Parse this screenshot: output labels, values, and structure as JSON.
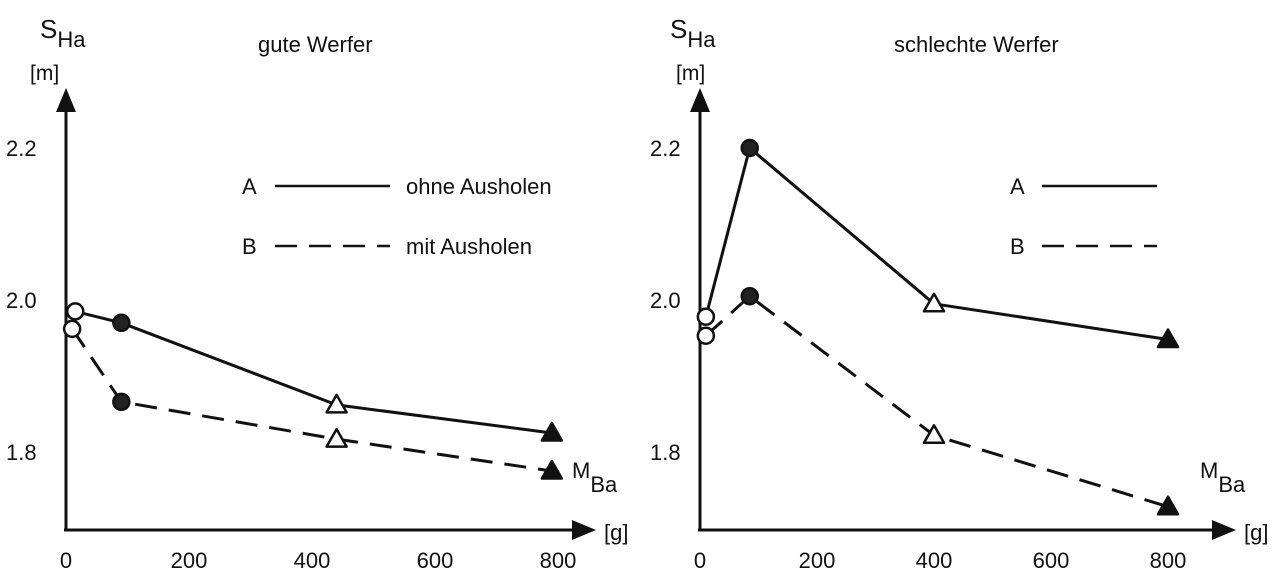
{
  "chart_data": [
    {
      "type": "line",
      "title": "gute Werfer",
      "ylabel": {
        "main": "S",
        "sub": "Ha",
        "unit": "[m]"
      },
      "xlabel": {
        "main": "M",
        "sub": "Ba",
        "unit": "[g]"
      },
      "xlim": [
        0,
        800
      ],
      "ylim": [
        1.7,
        2.25
      ],
      "xticks": [
        "0",
        "200",
        "400",
        "600",
        "800"
      ],
      "yticks": [
        "1.8",
        "2.0",
        "2.2"
      ],
      "legend": [
        {
          "key": "A",
          "label": "ohne Ausholen",
          "style": "solid"
        },
        {
          "key": "B",
          "label": "mit Ausholen",
          "style": "dashed"
        }
      ],
      "series": [
        {
          "name": "A",
          "style": "solid",
          "points": [
            {
              "x": 15,
              "y": 1.985,
              "marker": "circle-open"
            },
            {
              "x": 90,
              "y": 1.97,
              "marker": "circle-filled"
            },
            {
              "x": 440,
              "y": 1.862,
              "marker": "triangle-open"
            },
            {
              "x": 790,
              "y": 1.825,
              "marker": "triangle-filled"
            }
          ]
        },
        {
          "name": "B",
          "style": "dashed",
          "points": [
            {
              "x": 10,
              "y": 1.962,
              "marker": "circle-open"
            },
            {
              "x": 90,
              "y": 1.866,
              "marker": "circle-filled"
            },
            {
              "x": 440,
              "y": 1.817,
              "marker": "triangle-open"
            },
            {
              "x": 790,
              "y": 1.775,
              "marker": "triangle-filled"
            }
          ]
        }
      ]
    },
    {
      "type": "line",
      "title": "schlechte Werfer",
      "ylabel": {
        "main": "S",
        "sub": "Ha",
        "unit": "[m]"
      },
      "xlabel": {
        "main": "M",
        "sub": "Ba",
        "unit": "[g]"
      },
      "xlim": [
        0,
        800
      ],
      "ylim": [
        1.7,
        2.25
      ],
      "xticks": [
        "0",
        "200",
        "400",
        "600",
        "800"
      ],
      "yticks": [
        "1.8",
        "2.0",
        "2.2"
      ],
      "legend": [
        {
          "key": "A",
          "label": "",
          "style": "solid"
        },
        {
          "key": "B",
          "label": "",
          "style": "dashed"
        }
      ],
      "series": [
        {
          "name": "A",
          "style": "solid",
          "points": [
            {
              "x": 10,
              "y": 1.978,
              "marker": "circle-open"
            },
            {
              "x": 85,
              "y": 2.2,
              "marker": "circle-filled"
            },
            {
              "x": 400,
              "y": 1.995,
              "marker": "triangle-open"
            },
            {
              "x": 800,
              "y": 1.948,
              "marker": "triangle-filled"
            }
          ]
        },
        {
          "name": "B",
          "style": "dashed",
          "points": [
            {
              "x": 10,
              "y": 1.953,
              "marker": "circle-open"
            },
            {
              "x": 85,
              "y": 2.005,
              "marker": "circle-filled"
            },
            {
              "x": 400,
              "y": 1.822,
              "marker": "triangle-open"
            },
            {
              "x": 800,
              "y": 1.728,
              "marker": "triangle-filled"
            }
          ]
        }
      ]
    }
  ]
}
